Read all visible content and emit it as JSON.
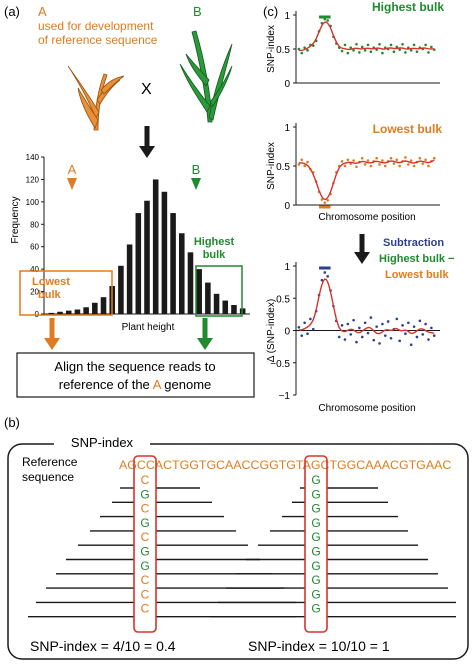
{
  "colors": {
    "orange": "#E07B21",
    "green": "#1F8A2E",
    "black": "#1a1a1a",
    "red": "#D6342C",
    "blue": "#2E3F8F"
  },
  "panel_a": {
    "label": "(a)",
    "parent_a_letter": "A",
    "parent_a_note_1": "used for development",
    "parent_a_note_2": "of reference sequence",
    "parent_b_letter": "B",
    "cross_symbol": "X",
    "histogram_marker_a": "A",
    "histogram_marker_b": "B",
    "lowest_bulk_1": "Lowest",
    "lowest_bulk_2": "bulk",
    "highest_bulk_1": "Highest",
    "highest_bulk_2": "bulk",
    "align_text_1": "Align the sequence reads to",
    "align_text_2a": "reference of the ",
    "align_text_2b": "A",
    "align_text_2c": " genome"
  },
  "panel_b": {
    "label": "(b)",
    "box_title": "SNP-index",
    "reference_label_1": "Reference",
    "reference_label_2": "sequence",
    "reference_part_1": "AGCCAC",
    "reference_snp_1": "T",
    "reference_part_2": "GGTGCAACCGGTGTAG",
    "reference_snp_2": "C",
    "reference_part_3": "TGGCAAACGTGAAC",
    "column1_alleles": [
      "C",
      "G",
      "C",
      "G",
      "C",
      "G",
      "G",
      "C",
      "C",
      "C"
    ],
    "column2_alleles": [
      "G",
      "G",
      "G",
      "G",
      "G",
      "G",
      "G",
      "G",
      "G",
      "G"
    ],
    "snp_result_1": "SNP-index = 4/10 = 0.4",
    "snp_result_2": "SNP-index = 10/10 = 1"
  },
  "panel_c": {
    "label": "(c)",
    "highest_title": "Highest bulk",
    "lowest_title": "Lowest bulk",
    "subtraction_label": "Subtraction",
    "subtraction_line2": "Highest bulk −",
    "subtraction_line3": "Lowest bulk",
    "x_axis_label_lowest": "Chromosome position",
    "x_axis_label_delta": "Chromosome position"
  },
  "chart_data": [
    {
      "type": "bar",
      "ylabel": "Frequency",
      "xlabel": "Plant height",
      "ylim": [
        0,
        140
      ],
      "yticks": [
        0,
        20,
        40,
        60,
        80,
        100,
        120,
        140
      ],
      "values": [
        1,
        2,
        3,
        4,
        6,
        10,
        15,
        25,
        43,
        62,
        90,
        101,
        120,
        109,
        90,
        72,
        55,
        40,
        28,
        18,
        12,
        8,
        5
      ],
      "colors": {
        "bars": "#1a1a1a"
      }
    },
    {
      "type": "scatter",
      "ylabel": "SNP-index",
      "ylim": [
        0,
        1
      ],
      "yticks": [
        0,
        0.5,
        1
      ],
      "xlim": [
        0,
        100
      ],
      "fit": "line",
      "points": [
        [
          2,
          0.5
        ],
        [
          4,
          0.44
        ],
        [
          6,
          0.52
        ],
        [
          8,
          0.48
        ],
        [
          10,
          0.56
        ],
        [
          12,
          0.55
        ],
        [
          14,
          0.62
        ],
        [
          16,
          0.76
        ],
        [
          18,
          0.88
        ],
        [
          20,
          0.94
        ],
        [
          22,
          0.92
        ],
        [
          24,
          0.84
        ],
        [
          26,
          0.68
        ],
        [
          28,
          0.58
        ],
        [
          30,
          0.52
        ],
        [
          32,
          0.47
        ],
        [
          34,
          0.56
        ],
        [
          36,
          0.44
        ],
        [
          38,
          0.52
        ],
        [
          40,
          0.48
        ],
        [
          42,
          0.57
        ],
        [
          44,
          0.45
        ],
        [
          46,
          0.53
        ],
        [
          48,
          0.48
        ],
        [
          50,
          0.56
        ],
        [
          52,
          0.46
        ],
        [
          54,
          0.52
        ],
        [
          56,
          0.49
        ],
        [
          58,
          0.57
        ],
        [
          60,
          0.44
        ],
        [
          62,
          0.52
        ],
        [
          64,
          0.5
        ],
        [
          66,
          0.56
        ],
        [
          68,
          0.46
        ],
        [
          70,
          0.53
        ],
        [
          72,
          0.49
        ],
        [
          74,
          0.57
        ],
        [
          76,
          0.45
        ],
        [
          78,
          0.52
        ],
        [
          80,
          0.48
        ],
        [
          82,
          0.56
        ],
        [
          84,
          0.46
        ],
        [
          86,
          0.52
        ],
        [
          88,
          0.5
        ],
        [
          90,
          0.56
        ],
        [
          92,
          0.45
        ],
        [
          94,
          0.53
        ],
        [
          96,
          0.49
        ]
      ],
      "colors": {
        "points": "#1F8A2E",
        "fit": "#D6342C",
        "marker": "#1F8A2E"
      }
    },
    {
      "type": "scatter",
      "ylabel": "SNP-index",
      "xlabel": "Chromosome position",
      "ylim": [
        0,
        1
      ],
      "yticks": [
        0,
        0.5,
        1
      ],
      "xlim": [
        0,
        100
      ],
      "fit": "line",
      "points": [
        [
          2,
          0.52
        ],
        [
          4,
          0.58
        ],
        [
          6,
          0.5
        ],
        [
          8,
          0.55
        ],
        [
          10,
          0.46
        ],
        [
          12,
          0.42
        ],
        [
          14,
          0.3
        ],
        [
          16,
          0.17
        ],
        [
          18,
          0.07
        ],
        [
          20,
          0.03
        ],
        [
          22,
          0.06
        ],
        [
          24,
          0.14
        ],
        [
          26,
          0.28
        ],
        [
          28,
          0.42
        ],
        [
          30,
          0.5
        ],
        [
          32,
          0.56
        ],
        [
          34,
          0.5
        ],
        [
          36,
          0.58
        ],
        [
          38,
          0.53
        ],
        [
          40,
          0.57
        ],
        [
          42,
          0.49
        ],
        [
          44,
          0.55
        ],
        [
          46,
          0.6
        ],
        [
          48,
          0.52
        ],
        [
          50,
          0.57
        ],
        [
          52,
          0.5
        ],
        [
          54,
          0.56
        ],
        [
          56,
          0.6
        ],
        [
          58,
          0.52
        ],
        [
          60,
          0.57
        ],
        [
          62,
          0.5
        ],
        [
          64,
          0.56
        ],
        [
          66,
          0.6
        ],
        [
          68,
          0.53
        ],
        [
          70,
          0.58
        ],
        [
          72,
          0.5
        ],
        [
          74,
          0.56
        ],
        [
          76,
          0.61
        ],
        [
          78,
          0.52
        ],
        [
          80,
          0.57
        ],
        [
          82,
          0.5
        ],
        [
          84,
          0.55
        ],
        [
          86,
          0.6
        ],
        [
          88,
          0.53
        ],
        [
          90,
          0.58
        ],
        [
          92,
          0.5
        ],
        [
          94,
          0.56
        ],
        [
          96,
          0.6
        ]
      ],
      "colors": {
        "points": "#E07B21",
        "fit": "#D6342C",
        "marker": "#E07B21"
      }
    },
    {
      "type": "scatter",
      "ylabel": "Δ (SNP-index)",
      "xlabel": "Chromosome position",
      "ylim": [
        -1,
        1
      ],
      "yticks": [
        -1,
        -0.5,
        0,
        0.5,
        1
      ],
      "xlim": [
        0,
        100
      ],
      "fit": "line",
      "points": [
        [
          2,
          0.05
        ],
        [
          4,
          -0.08
        ],
        [
          6,
          0.12
        ],
        [
          8,
          -0.05
        ],
        [
          10,
          0.18
        ],
        [
          12,
          0.02
        ],
        [
          14,
          0.3
        ],
        [
          16,
          0.55
        ],
        [
          18,
          0.78
        ],
        [
          20,
          0.9
        ],
        [
          22,
          0.84
        ],
        [
          24,
          0.62
        ],
        [
          26,
          0.38
        ],
        [
          28,
          0.15
        ],
        [
          30,
          -0.1
        ],
        [
          32,
          0.08
        ],
        [
          34,
          -0.14
        ],
        [
          36,
          0.1
        ],
        [
          38,
          -0.06
        ],
        [
          40,
          0.16
        ],
        [
          42,
          -0.18
        ],
        [
          44,
          0.04
        ],
        [
          46,
          -0.1
        ],
        [
          48,
          0.12
        ],
        [
          50,
          -0.04
        ],
        [
          52,
          0.2
        ],
        [
          54,
          -0.15
        ],
        [
          56,
          0.06
        ],
        [
          58,
          -0.2
        ],
        [
          60,
          0.1
        ],
        [
          62,
          -0.08
        ],
        [
          64,
          0.14
        ],
        [
          66,
          -0.12
        ],
        [
          68,
          0.02
        ],
        [
          70,
          0.18
        ],
        [
          72,
          -0.16
        ],
        [
          74,
          0.08
        ],
        [
          76,
          -0.05
        ],
        [
          78,
          0.12
        ],
        [
          80,
          -0.22
        ],
        [
          82,
          0.06
        ],
        [
          84,
          -0.1
        ],
        [
          86,
          0.15
        ],
        [
          88,
          -0.06
        ],
        [
          90,
          0.1
        ],
        [
          92,
          -0.14
        ],
        [
          94,
          0.04
        ],
        [
          96,
          -0.08
        ]
      ],
      "colors": {
        "points": "#2E3F8F",
        "fit": "#D6342C",
        "marker": "#2E3F8F"
      }
    }
  ]
}
